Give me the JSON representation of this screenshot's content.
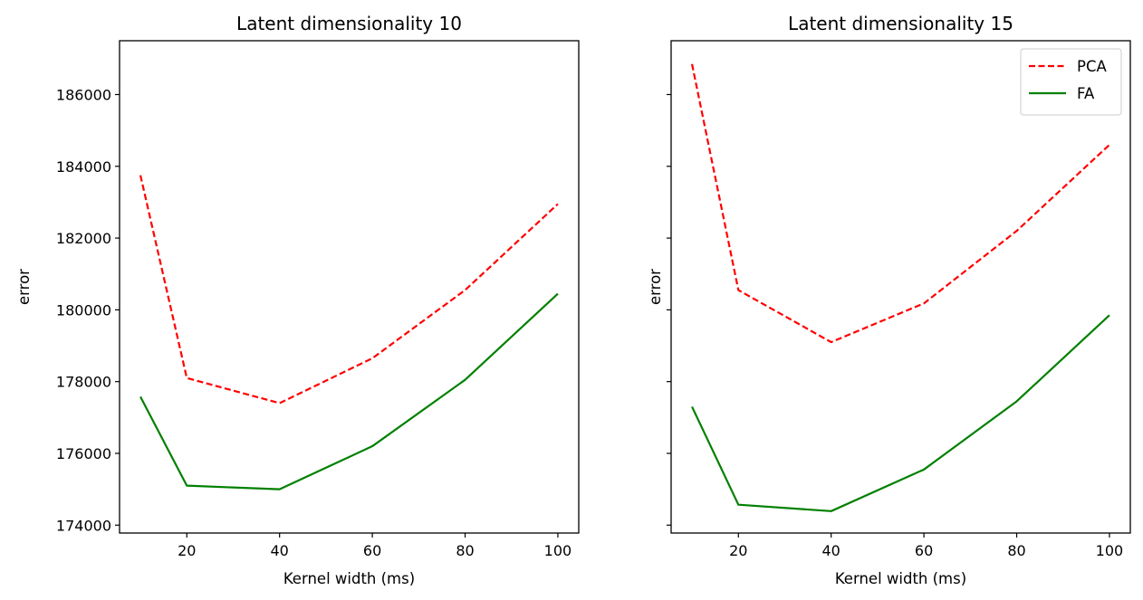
{
  "chart_data": [
    {
      "type": "line",
      "title": "Latent dimensionality 10",
      "xlabel": "Kernel width (ms)",
      "ylabel": "error",
      "x": [
        10,
        20,
        40,
        60,
        80,
        100
      ],
      "xticks": [
        20,
        40,
        60,
        80,
        100
      ],
      "xlim": [
        5.5,
        104.5
      ],
      "yticks": [
        174000,
        176000,
        178000,
        180000,
        182000,
        184000,
        186000
      ],
      "ylim": [
        173780,
        187500
      ],
      "show_ytick_labels": true,
      "grid": false,
      "legend": null,
      "series": [
        {
          "name": "PCA",
          "color": "#ff0000",
          "dash": "dashed",
          "values": [
            183750,
            178100,
            177400,
            178650,
            180550,
            182950
          ]
        },
        {
          "name": "FA",
          "color": "#008000",
          "dash": "solid",
          "values": [
            177580,
            175100,
            175000,
            176200,
            178050,
            180450
          ]
        }
      ]
    },
    {
      "type": "line",
      "title": "Latent dimensionality 15",
      "xlabel": "Kernel width (ms)",
      "ylabel": "error",
      "x": [
        10,
        20,
        40,
        60,
        80,
        100
      ],
      "xticks": [
        20,
        40,
        60,
        80,
        100
      ],
      "xlim": [
        5.5,
        104.5
      ],
      "yticks": [
        174000,
        176000,
        178000,
        180000,
        182000,
        184000,
        186000
      ],
      "ylim": [
        173780,
        187500
      ],
      "show_ytick_labels": false,
      "grid": false,
      "legend": "top-right",
      "series": [
        {
          "name": "PCA",
          "color": "#ff0000",
          "dash": "dashed",
          "values": [
            186850,
            180550,
            179100,
            180180,
            182200,
            184600
          ]
        },
        {
          "name": "FA",
          "color": "#008000",
          "dash": "solid",
          "values": [
            177300,
            174570,
            174390,
            175550,
            177450,
            179850
          ]
        }
      ]
    }
  ]
}
